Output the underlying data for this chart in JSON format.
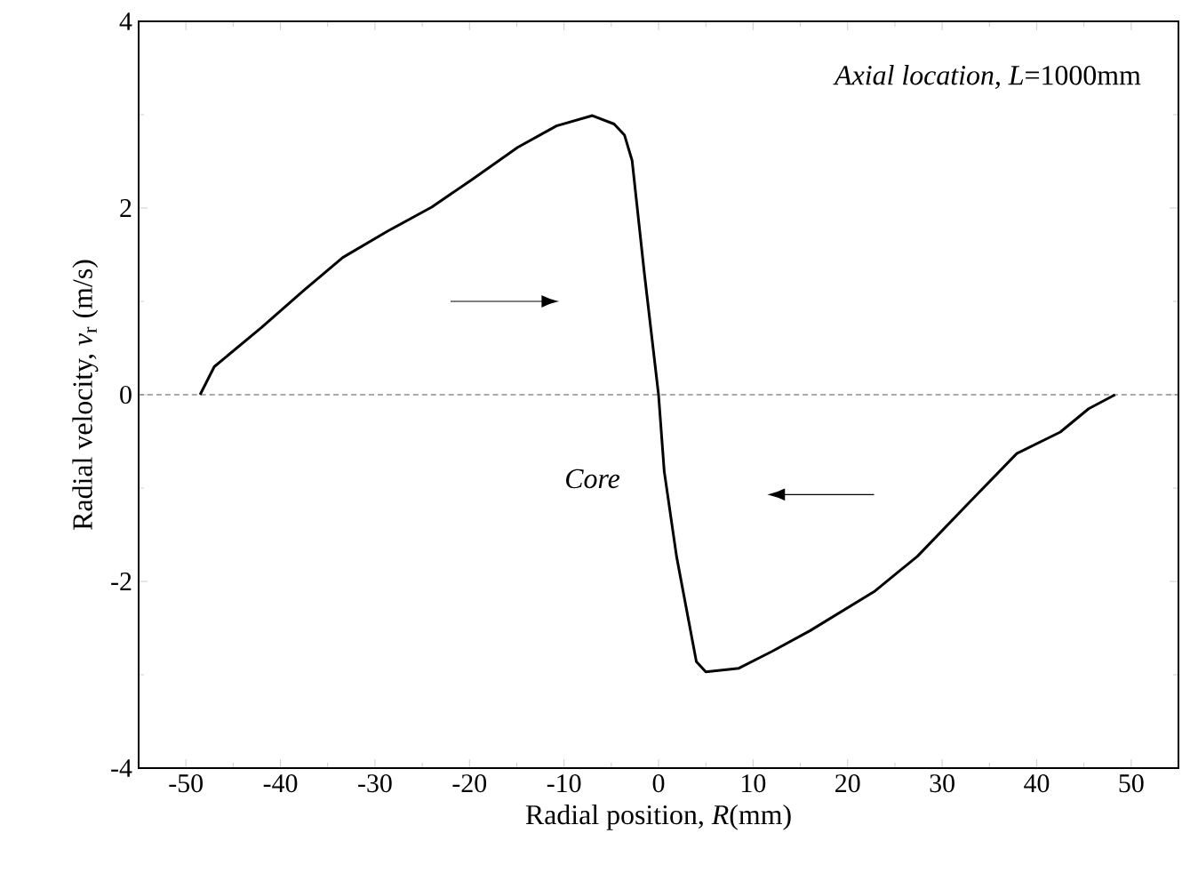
{
  "chart_data": {
    "type": "line",
    "xlabel": "Radial position, *R*(mm)",
    "ylabel": "Radial velocity, *v*$_{r}$ (m/s)",
    "annotations": [
      "*Axial location, L*=1000mm",
      "*Core*"
    ],
    "x": [
      -48.5,
      -47,
      -42,
      -37.5,
      -33.4,
      -28.7,
      -24,
      -19.8,
      -14.9,
      -10.8,
      -7.0,
      -4.7,
      -3.6,
      -2.8,
      -1.5,
      0,
      0.6,
      1.9,
      4.0,
      5.0,
      8.5,
      12,
      16,
      22.8,
      27.4,
      33,
      37.9,
      42.5,
      45.5,
      48.3
    ],
    "series": [
      {
        "color": "#000000",
        "values": [
          0,
          0.3,
          0.72,
          1.12,
          1.47,
          1.75,
          2.01,
          2.3,
          2.65,
          2.88,
          2.99,
          2.9,
          2.78,
          2.51,
          1.3,
          0,
          -0.82,
          -1.73,
          -2.86,
          -2.97,
          -2.93,
          -2.75,
          -2.53,
          -2.11,
          -1.73,
          -1.14,
          -0.63,
          -0.4,
          -0.15,
          0
        ]
      }
    ],
    "xlim": [
      -55,
      55
    ],
    "ylim": [
      -4,
      4
    ],
    "xticks": [
      -50,
      -40,
      -30,
      -20,
      -10,
      0,
      10,
      20,
      30,
      40,
      50
    ],
    "yticks": [
      -4,
      -2,
      0,
      2,
      4
    ],
    "ref_lines": [
      {
        "axis": "y",
        "value": 0,
        "color": "#555555",
        "line_style": "dashed"
      }
    ],
    "grid": false,
    "marker": "none",
    "line_style": "solid"
  }
}
